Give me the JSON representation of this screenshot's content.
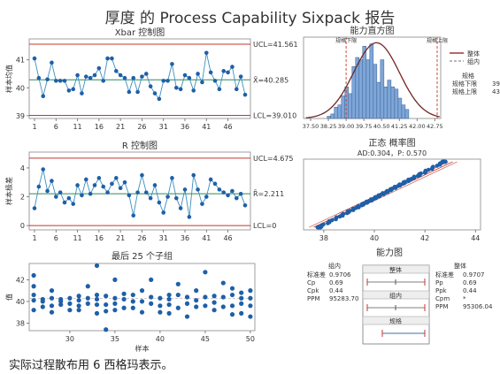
{
  "title": "厚度 的 Process Capability Sixpack 报告",
  "footer": "实际过程散布用 6 西格玛表示。",
  "colors": {
    "data": "#1f5fa8",
    "line": "#3a8ebf",
    "center": "#2e8b57",
    "limit": "#c0392b",
    "bar": "#7ea6d9",
    "curve": "#8b1a1a"
  },
  "chart_data": [
    {
      "id": "xbar",
      "type": "line",
      "title": "Xbar 控制图",
      "ylabel": "样本均值",
      "x_ticks": [
        1,
        6,
        11,
        16,
        21,
        26,
        31,
        36,
        41,
        46
      ],
      "y_ticks": [
        39,
        40,
        41
      ],
      "ylim": [
        38.9,
        41.75
      ],
      "ucl": 41.561,
      "center": 40.285,
      "lcl": 39.01,
      "ucl_label": "UCL=41.561",
      "center_label": "X̄=40.285",
      "lcl_label": "LCL=39.010",
      "values": [
        41.05,
        40.35,
        39.7,
        40.3,
        40.9,
        40.25,
        40.25,
        40.25,
        39.9,
        39.95,
        40.45,
        39.8,
        40.4,
        40.35,
        40.45,
        40.7,
        40.25,
        41.05,
        41.05,
        40.6,
        40.45,
        40.35,
        39.85,
        40.35,
        39.85,
        40.4,
        40.5,
        40.05,
        39.8,
        39.6,
        40.25,
        40.25,
        40.85,
        40.0,
        39.95,
        40.45,
        40.35,
        39.9,
        40.5,
        40.2,
        41.25,
        40.55,
        40.25,
        39.95,
        40.6,
        40.55,
        40.75,
        39.95,
        40.4,
        39.75
      ]
    },
    {
      "id": "rchart",
      "type": "line",
      "title": "R 控制图",
      "ylabel": "样本极差",
      "x_ticks": [
        1,
        6,
        11,
        16,
        21,
        26,
        31,
        36,
        41,
        46
      ],
      "y_ticks": [
        0,
        2,
        4
      ],
      "ylim": [
        -0.3,
        5.1
      ],
      "ucl": 4.675,
      "center": 2.211,
      "lcl": 0,
      "ucl_label": "UCL=4.675",
      "center_label": "R̄=2.211",
      "lcl_label": "LCL=0",
      "values": [
        1.2,
        2.7,
        3.9,
        2.4,
        3.1,
        2.0,
        2.3,
        1.6,
        1.9,
        1.5,
        2.8,
        2.1,
        3.2,
        2.2,
        2.8,
        3.3,
        2.7,
        2.3,
        2.9,
        3.3,
        2.6,
        3.0,
        2.1,
        0.7,
        2.3,
        3.5,
        2.3,
        1.9,
        2.8,
        1.6,
        0.9,
        2.0,
        3.3,
        1.9,
        1.2,
        2.5,
        0.6,
        3.5,
        2.5,
        1.5,
        2.0,
        3.2,
        2.9,
        2.5,
        2.3,
        2.1,
        2.4,
        1.9,
        2.2,
        1.4
      ]
    },
    {
      "id": "lastsub",
      "type": "scatter",
      "title": "最后 25 个子组",
      "ylabel": "值",
      "xlabel": "样本",
      "x_ticks": [
        30,
        35,
        40,
        45,
        50
      ],
      "y_ticks": [
        38,
        40,
        42
      ],
      "xlim": [
        25.5,
        50.5
      ],
      "ylim": [
        37.3,
        43.5
      ],
      "points": [
        [
          26,
          42.4
        ],
        [
          26,
          41.4
        ],
        [
          26,
          40.6
        ],
        [
          26,
          40.1
        ],
        [
          26,
          39.2
        ],
        [
          27,
          40.2
        ],
        [
          27,
          40.0
        ],
        [
          27,
          39.5
        ],
        [
          28,
          41.0
        ],
        [
          28,
          40.3
        ],
        [
          28,
          39.6
        ],
        [
          28,
          39.0
        ],
        [
          29,
          40.2
        ],
        [
          29,
          40.0
        ],
        [
          29,
          39.7
        ],
        [
          30,
          40.3
        ],
        [
          30,
          39.8
        ],
        [
          30,
          39.2
        ],
        [
          31,
          40.5
        ],
        [
          31,
          40.1
        ],
        [
          31,
          39.6
        ],
        [
          31,
          39.2
        ],
        [
          32,
          41.4
        ],
        [
          32,
          40.3
        ],
        [
          32,
          39.8
        ],
        [
          33,
          43.3
        ],
        [
          33,
          40.6
        ],
        [
          33,
          40.2
        ],
        [
          33,
          39.7
        ],
        [
          33,
          38.9
        ],
        [
          34,
          40.5
        ],
        [
          34,
          39.7
        ],
        [
          34,
          39.1
        ],
        [
          34,
          37.4
        ],
        [
          35,
          42.0
        ],
        [
          35,
          40.3
        ],
        [
          35,
          39.8
        ],
        [
          35,
          39.2
        ],
        [
          36,
          40.7
        ],
        [
          36,
          40.2
        ],
        [
          36,
          39.4
        ],
        [
          37,
          40.6
        ],
        [
          37,
          40.0
        ],
        [
          37,
          39.4
        ],
        [
          38,
          41.0
        ],
        [
          38,
          40.0
        ],
        [
          38,
          39.0
        ],
        [
          39,
          42.0
        ],
        [
          39,
          40.4
        ],
        [
          39,
          39.8
        ],
        [
          40,
          40.3
        ],
        [
          40,
          39.6
        ],
        [
          40,
          39.0
        ],
        [
          41,
          40.6
        ],
        [
          41,
          40.2
        ],
        [
          41,
          39.7
        ],
        [
          41,
          38.9
        ],
        [
          42,
          41.6
        ],
        [
          42,
          40.6
        ],
        [
          42,
          39.4
        ],
        [
          43,
          40.4
        ],
        [
          43,
          39.8
        ],
        [
          43,
          38.6
        ],
        [
          44,
          41.0
        ],
        [
          44,
          40.1
        ],
        [
          44,
          39.5
        ],
        [
          45,
          42.7
        ],
        [
          45,
          40.4
        ],
        [
          45,
          39.6
        ],
        [
          46,
          40.5
        ],
        [
          46,
          39.9
        ],
        [
          46,
          39.2
        ],
        [
          47,
          41.7
        ],
        [
          47,
          40.4
        ],
        [
          47,
          39.5
        ],
        [
          48,
          41.2
        ],
        [
          48,
          40.6
        ],
        [
          48,
          39.6
        ],
        [
          48,
          38.8
        ],
        [
          49,
          40.8
        ],
        [
          49,
          40.3
        ],
        [
          49,
          39.8
        ],
        [
          49,
          38.9
        ],
        [
          50,
          41.0
        ],
        [
          50,
          40.3
        ],
        [
          50,
          39.6
        ],
        [
          50,
          38.6
        ]
      ]
    },
    {
      "id": "hist",
      "type": "bar",
      "title": "能力直方图",
      "tick_labels": [
        "37.50",
        "38.25",
        "39.00",
        "39.75",
        "40.50",
        "41.25",
        "42.00",
        "42.75"
      ],
      "xlim": [
        37.2,
        43.0
      ],
      "ylim": [
        0,
        36
      ],
      "bin_start": 38.2,
      "bin_width": 0.15,
      "counts": [
        1,
        2,
        5,
        6,
        10,
        14,
        11,
        23,
        27,
        26,
        32,
        26,
        33,
        24,
        16,
        26,
        14,
        17,
        14,
        13,
        9,
        6,
        4
      ],
      "lsl": 39,
      "usl": 43,
      "lsl_label": "规格下限",
      "usl_label": "规格上限",
      "mean": 40.285,
      "sd": 0.9706,
      "legend_overall": "整体",
      "legend_within": "组内",
      "spec_title": "规格",
      "spec_lsl_label": "规格下限",
      "spec_lsl_value": "39",
      "spec_usl_label": "规格上限",
      "spec_usl_value": "43"
    },
    {
      "id": "prob",
      "type": "scatter",
      "title": "正态 概率图",
      "subtitle": "AD:0.304，P: 0.570",
      "x_ticks": [
        38,
        40,
        42,
        44
      ],
      "xlim": [
        37.2,
        44.2
      ]
    },
    {
      "id": "caplot",
      "type": "table",
      "title": "能力图",
      "within_header": "组内",
      "overall_header": "整体",
      "within_rows": [
        [
          "标准差",
          "0.9706"
        ],
        [
          "Cp",
          "0.69"
        ],
        [
          "Cpk",
          "0.44"
        ],
        [
          "PPM",
          "95283.70"
        ]
      ],
      "overall_rows": [
        [
          "标准差",
          "0.9707"
        ],
        [
          "Pp",
          "0.69"
        ],
        [
          "Ppk",
          "0.44"
        ],
        [
          "Cpm",
          "*"
        ],
        [
          "PPM",
          "95306.04"
        ]
      ],
      "box_labels": [
        "整体",
        "组内",
        "规格"
      ]
    }
  ]
}
